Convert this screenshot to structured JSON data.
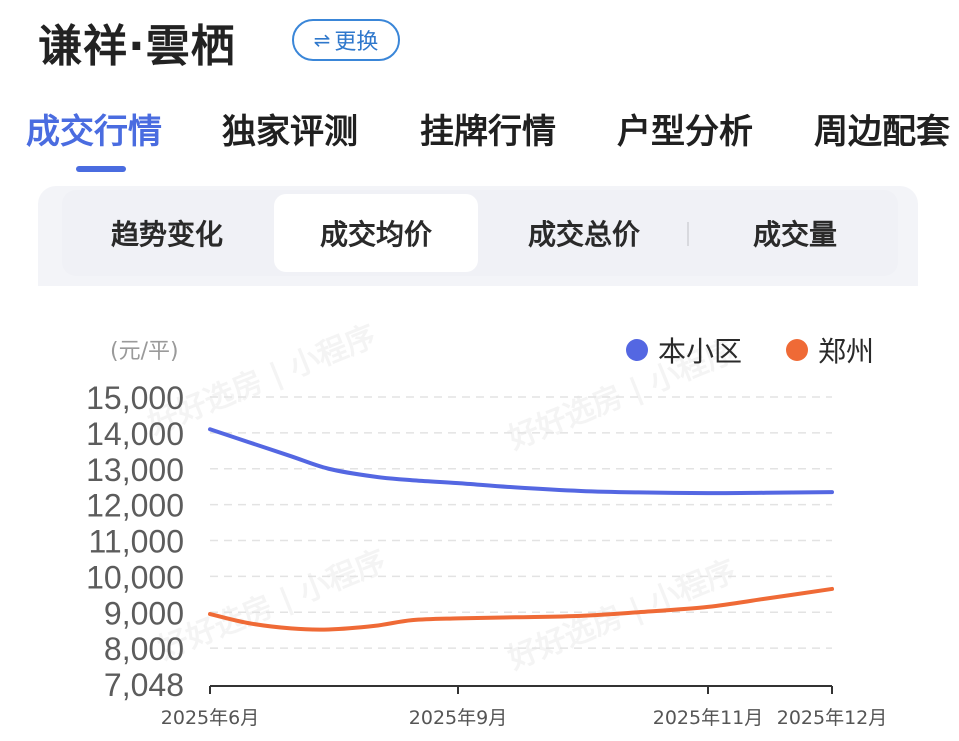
{
  "header": {
    "title": "谦祥·雲栖",
    "switch_label": "更换",
    "switch_icon": "swap-icon"
  },
  "main_tabs": [
    {
      "label": "成交行情",
      "active": true
    },
    {
      "label": "独家评测",
      "active": false
    },
    {
      "label": "挂牌行情",
      "active": false
    },
    {
      "label": "户型分析",
      "active": false
    },
    {
      "label": "周边配套",
      "active": false
    }
  ],
  "sub_tabs": [
    {
      "label": "趋势变化",
      "active": false
    },
    {
      "label": "成交均价",
      "active": true
    },
    {
      "label": "成交总价",
      "active": false
    },
    {
      "label": "成交量",
      "active": false
    }
  ],
  "watermark": "好好选房 | 小程序",
  "colors": {
    "accent": "#4a6ce0",
    "series_community": "#5467e2",
    "series_city": "#ef6a36"
  },
  "chart_data": {
    "type": "line",
    "unit": "(元/平)",
    "x_ticks": [
      "2025年6月",
      "2025年9月",
      "2025年11月",
      "2025年12月"
    ],
    "y_ticks": [
      "15,000",
      "14,000",
      "13,000",
      "12,000",
      "11,000",
      "10,000",
      "9,000",
      "8,000",
      "7,048"
    ],
    "ylim": [
      7048,
      15000
    ],
    "grid": true,
    "legend_position": "top-right",
    "series": [
      {
        "name": "本小区",
        "color": "#5467e2",
        "points": [
          [
            "2025-06-01",
            14100
          ],
          [
            "2025-06-15",
            13750
          ],
          [
            "2025-07-01",
            13350
          ],
          [
            "2025-07-15",
            13000
          ],
          [
            "2025-08-01",
            12780
          ],
          [
            "2025-08-15",
            12680
          ],
          [
            "2025-09-01",
            12600
          ],
          [
            "2025-09-15",
            12480
          ],
          [
            "2025-10-01",
            12380
          ],
          [
            "2025-10-15",
            12340
          ],
          [
            "2025-11-01",
            12320
          ],
          [
            "2025-11-15",
            12330
          ],
          [
            "2025-12-01",
            12350
          ]
        ]
      },
      {
        "name": "郑州",
        "color": "#ef6a36",
        "points": [
          [
            "2025-06-01",
            8950
          ],
          [
            "2025-06-15",
            8700
          ],
          [
            "2025-07-01",
            8550
          ],
          [
            "2025-07-15",
            8520
          ],
          [
            "2025-08-01",
            8620
          ],
          [
            "2025-08-15",
            8780
          ],
          [
            "2025-09-01",
            8830
          ],
          [
            "2025-09-15",
            8860
          ],
          [
            "2025-10-01",
            8900
          ],
          [
            "2025-10-15",
            9000
          ],
          [
            "2025-11-01",
            9150
          ],
          [
            "2025-11-15",
            9380
          ],
          [
            "2025-12-01",
            9650
          ]
        ]
      }
    ]
  }
}
